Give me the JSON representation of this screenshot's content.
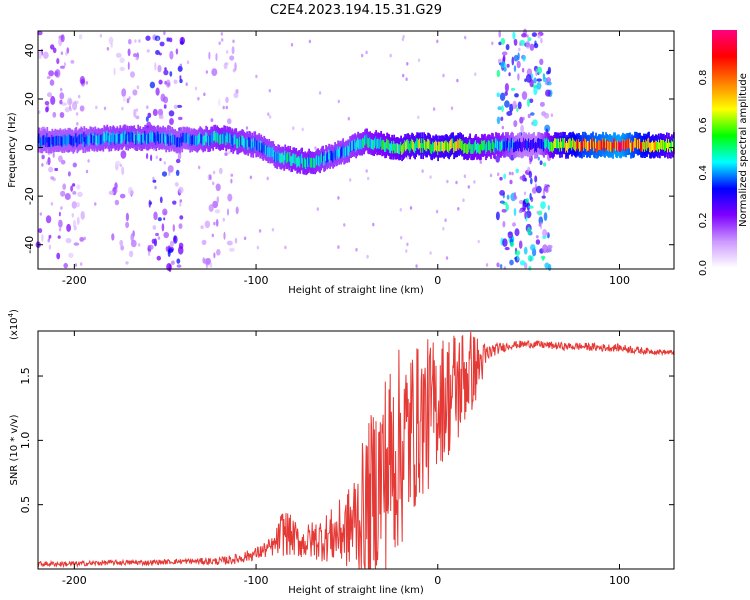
{
  "figure_title": "C2E4.2023.194.15.31.G29",
  "chart_data": [
    {
      "type": "heatmap",
      "xlabel": "Height of straight line (km)",
      "ylabel": "Frequency (Hz)",
      "xlim": [
        -220,
        130
      ],
      "ylim": [
        -50,
        48
      ],
      "x_ticks": [
        -200,
        -100,
        0,
        100
      ],
      "y_ticks": [
        -40,
        -20,
        0,
        20,
        40
      ],
      "colorbar": {
        "label": "Normalized spectral amplitude",
        "range": [
          0.0,
          1.0
        ],
        "ticks": [
          0.0,
          0.2,
          0.4,
          0.6,
          0.8
        ],
        "colors": [
          "#ffffff",
          "#cc99ff",
          "#7f00ff",
          "#0000ff",
          "#00ffff",
          "#00ff00",
          "#ffff00",
          "#ff8000",
          "#ff0000",
          "#ff0080"
        ]
      },
      "ridge": {
        "x": [
          -220,
          -200,
          -180,
          -160,
          -140,
          -120,
          -100,
          -90,
          -80,
          -70,
          -60,
          -50,
          -40,
          -30,
          -20,
          -10,
          0,
          10,
          20,
          35,
          45,
          55,
          65,
          80,
          100,
          130
        ],
        "freq": [
          3,
          3,
          4,
          4,
          3,
          4,
          1,
          -3,
          -5,
          -6,
          -4,
          -1,
          3,
          1,
          0,
          1,
          0,
          1,
          0,
          1,
          1,
          1,
          1,
          1,
          1,
          1
        ],
        "level": [
          0.35,
          0.35,
          0.4,
          0.4,
          0.35,
          0.45,
          0.4,
          0.4,
          0.45,
          0.45,
          0.4,
          0.4,
          0.45,
          0.5,
          0.55,
          0.6,
          0.6,
          0.65,
          0.5,
          0.45,
          0.3,
          0.3,
          0.6,
          0.8,
          0.9,
          0.55
        ]
      },
      "scatter_bands": [
        {
          "x_range": [
            -220,
            -195
          ],
          "level": 0.12
        },
        {
          "x_range": [
            -180,
            -165
          ],
          "level": 0.1
        },
        {
          "x_range": [
            -160,
            -140
          ],
          "level": 0.18
        },
        {
          "x_range": [
            -130,
            -110
          ],
          "level": 0.08
        },
        {
          "x_range": [
            33,
            62
          ],
          "level": 0.25
        }
      ]
    },
    {
      "type": "line",
      "xlabel": "Height of straight line (km)",
      "ylabel": "SNR (10 * v/v)",
      "y_multiplier": "(x10",
      "y_multiplier_exp": "4",
      "xlim": [
        -220,
        130
      ],
      "ylim": [
        0,
        1.85
      ],
      "x_ticks": [
        -200,
        -100,
        0,
        100
      ],
      "y_ticks": [
        0.5,
        1.0,
        1.5
      ],
      "color": "#e53935",
      "series": [
        {
          "x": [
            -220,
            -200,
            -180,
            -160,
            -140,
            -120,
            -110,
            -100,
            -90,
            -85,
            -80,
            -75,
            -70,
            -60,
            -50,
            -40,
            -35,
            -30,
            -25,
            -20,
            -15,
            -10,
            -5,
            0,
            5,
            10,
            15,
            20,
            25,
            30,
            40,
            50,
            60,
            70,
            80,
            90,
            100,
            110,
            120,
            130
          ],
          "y": [
            0.04,
            0.04,
            0.05,
            0.05,
            0.06,
            0.06,
            0.08,
            0.12,
            0.18,
            0.3,
            0.25,
            0.2,
            0.22,
            0.25,
            0.3,
            0.45,
            0.6,
            0.75,
            0.85,
            0.95,
            1.05,
            1.15,
            1.2,
            1.3,
            1.35,
            1.4,
            1.5,
            1.55,
            1.62,
            1.7,
            1.74,
            1.75,
            1.74,
            1.73,
            1.73,
            1.72,
            1.72,
            1.7,
            1.69,
            1.68
          ],
          "noise": [
            0.02,
            0.02,
            0.02,
            0.02,
            0.02,
            0.03,
            0.04,
            0.05,
            0.08,
            0.2,
            0.15,
            0.12,
            0.15,
            0.2,
            0.3,
            0.6,
            0.7,
            0.8,
            0.8,
            0.8,
            0.7,
            0.6,
            0.6,
            0.5,
            0.5,
            0.5,
            0.4,
            0.3,
            0.15,
            0.05,
            0.03,
            0.03,
            0.03,
            0.03,
            0.03,
            0.03,
            0.03,
            0.03,
            0.02,
            0.02
          ]
        }
      ]
    }
  ]
}
